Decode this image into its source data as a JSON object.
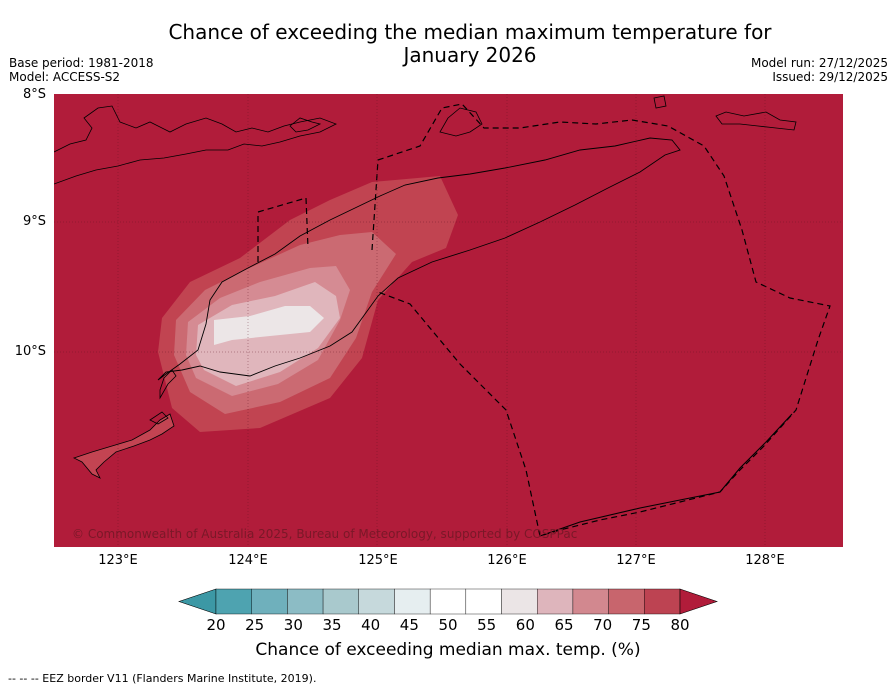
{
  "header": {
    "title_line1": "Chance of exceeding the median maximum temperature for",
    "title_line2": "January 2026",
    "base_period": "Base period: 1981-2018",
    "model": "Model: ACCESS-S2",
    "model_run": "Model run: 27/12/2025",
    "issued": "Issued: 29/12/2025"
  },
  "map": {
    "lat_labels": [
      "8°S",
      "9°S",
      "10°S"
    ],
    "lon_labels": [
      "123°E",
      "124°E",
      "125°E",
      "126°E",
      "127°E",
      "128°E"
    ],
    "background_color": "#b11c3a",
    "copyright": "© Commonwealth of Australia 2025, Bureau of Meteorology, supported by COSPPac"
  },
  "colorbar": {
    "ticks": [
      "20",
      "25",
      "30",
      "35",
      "40",
      "45",
      "50",
      "55",
      "60",
      "65",
      "70",
      "75",
      "80"
    ],
    "colors": [
      "#4ea3b0",
      "#6fb0bc",
      "#8cbcc5",
      "#a9c9cd",
      "#c6d9dc",
      "#e6eef0",
      "#ffffff",
      "#ffffff",
      "#ebe5e6",
      "#deb5bc",
      "#d2888f",
      "#c8656d",
      "#bd4352"
    ],
    "under_color": "#3c98a5",
    "over_color": "#b11c3a",
    "title": "Chance of exceeding median max. temp. (%)"
  },
  "footnote": "--  --  -- EEZ border V11 (Flanders Marine Institute, 2019)."
}
